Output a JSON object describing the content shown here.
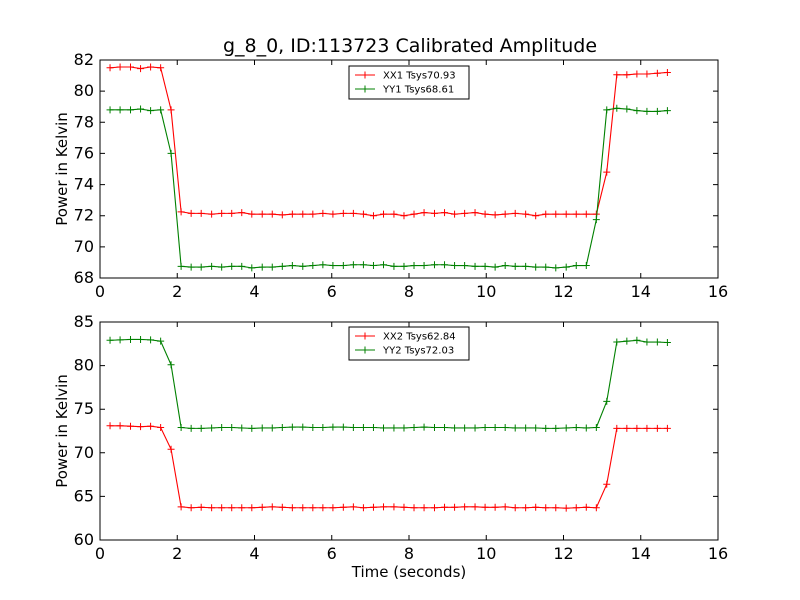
{
  "title": "g_8_0, ID:113723 Calibrated Amplitude",
  "chart_data": [
    {
      "type": "line",
      "title": "g_8_0, ID:113723 Calibrated Amplitude",
      "xlabel": "",
      "ylabel": "Power in Kelvin",
      "xlim": [
        0,
        16
      ],
      "ylim": [
        68,
        82
      ],
      "xticks": [
        0,
        2,
        4,
        6,
        8,
        10,
        12,
        14,
        16
      ],
      "yticks": [
        68,
        70,
        72,
        74,
        76,
        78,
        80,
        82
      ],
      "grid": false,
      "legend_position": "top-center",
      "x": [
        0.26,
        0.52,
        0.79,
        1.05,
        1.31,
        1.57,
        1.84,
        2.1,
        2.36,
        2.62,
        2.89,
        3.15,
        3.41,
        3.67,
        3.93,
        4.2,
        4.46,
        4.72,
        4.98,
        5.25,
        5.51,
        5.77,
        6.03,
        6.3,
        6.56,
        6.82,
        7.08,
        7.34,
        7.61,
        7.87,
        8.13,
        8.39,
        8.66,
        8.92,
        9.18,
        9.44,
        9.71,
        9.97,
        10.23,
        10.49,
        10.75,
        11.02,
        11.28,
        11.54,
        11.8,
        12.07,
        12.33,
        12.59,
        12.85,
        13.12,
        13.38,
        13.64,
        13.9,
        14.16,
        14.43,
        14.69
      ],
      "series": [
        {
          "name": "XX1 Tsys70.93",
          "color": "#ff0000",
          "values": [
            81.5,
            81.55,
            81.55,
            81.45,
            81.55,
            81.5,
            78.8,
            72.25,
            72.15,
            72.15,
            72.1,
            72.15,
            72.15,
            72.2,
            72.1,
            72.1,
            72.1,
            72.05,
            72.1,
            72.1,
            72.1,
            72.15,
            72.1,
            72.15,
            72.15,
            72.1,
            72.0,
            72.1,
            72.1,
            72.0,
            72.1,
            72.2,
            72.15,
            72.2,
            72.1,
            72.15,
            72.2,
            72.1,
            72.05,
            72.1,
            72.15,
            72.1,
            72.0,
            72.1,
            72.1,
            72.1,
            72.1,
            72.1,
            72.1,
            74.8,
            81.05,
            81.05,
            81.1,
            81.1,
            81.15,
            81.2
          ]
        },
        {
          "name": "YY1 Tsys68.61",
          "color": "#008000",
          "values": [
            78.8,
            78.8,
            78.8,
            78.85,
            78.75,
            78.8,
            76.0,
            68.75,
            68.7,
            68.7,
            68.75,
            68.7,
            68.75,
            68.75,
            68.65,
            68.7,
            68.7,
            68.75,
            68.8,
            68.75,
            68.8,
            68.85,
            68.8,
            68.8,
            68.85,
            68.85,
            68.8,
            68.85,
            68.75,
            68.75,
            68.8,
            68.8,
            68.85,
            68.85,
            68.8,
            68.8,
            68.75,
            68.75,
            68.7,
            68.8,
            68.75,
            68.75,
            68.7,
            68.7,
            68.65,
            68.7,
            68.8,
            68.8,
            71.75,
            78.8,
            78.9,
            78.85,
            78.75,
            78.7,
            78.7,
            78.75
          ]
        }
      ]
    },
    {
      "type": "line",
      "title": "",
      "xlabel": "Time (seconds)",
      "ylabel": "Power in Kelvin",
      "xlim": [
        0,
        16
      ],
      "ylim": [
        60,
        85
      ],
      "xticks": [
        0,
        2,
        4,
        6,
        8,
        10,
        12,
        14,
        16
      ],
      "yticks": [
        60,
        65,
        70,
        75,
        80,
        85
      ],
      "grid": false,
      "legend_position": "top-center",
      "x": [
        0.26,
        0.52,
        0.79,
        1.05,
        1.31,
        1.57,
        1.84,
        2.1,
        2.36,
        2.62,
        2.89,
        3.15,
        3.41,
        3.67,
        3.93,
        4.2,
        4.46,
        4.72,
        4.98,
        5.25,
        5.51,
        5.77,
        6.03,
        6.3,
        6.56,
        6.82,
        7.08,
        7.34,
        7.61,
        7.87,
        8.13,
        8.39,
        8.66,
        8.92,
        9.18,
        9.44,
        9.71,
        9.97,
        10.23,
        10.49,
        10.75,
        11.02,
        11.28,
        11.54,
        11.8,
        12.07,
        12.33,
        12.59,
        12.85,
        13.12,
        13.38,
        13.64,
        13.9,
        14.16,
        14.43,
        14.69
      ],
      "series": [
        {
          "name": "XX2 Tsys62.84",
          "color": "#ff0000",
          "values": [
            73.1,
            73.1,
            73.05,
            73.0,
            73.05,
            72.9,
            70.4,
            63.8,
            63.7,
            63.75,
            63.7,
            63.7,
            63.7,
            63.7,
            63.7,
            63.75,
            63.8,
            63.75,
            63.7,
            63.7,
            63.7,
            63.7,
            63.7,
            63.75,
            63.8,
            63.7,
            63.75,
            63.8,
            63.8,
            63.75,
            63.7,
            63.7,
            63.7,
            63.75,
            63.75,
            63.8,
            63.8,
            63.75,
            63.75,
            63.8,
            63.7,
            63.7,
            63.75,
            63.7,
            63.7,
            63.65,
            63.7,
            63.75,
            63.7,
            66.4,
            72.8,
            72.8,
            72.8,
            72.8,
            72.8,
            72.8
          ]
        },
        {
          "name": "YY2 Tsys72.03",
          "color": "#008000",
          "values": [
            82.9,
            82.95,
            83.0,
            83.0,
            82.95,
            82.8,
            80.1,
            72.9,
            72.8,
            72.8,
            72.85,
            72.9,
            72.9,
            72.85,
            72.8,
            72.85,
            72.85,
            72.9,
            72.95,
            72.95,
            72.9,
            72.9,
            72.95,
            72.95,
            72.9,
            72.9,
            72.9,
            72.85,
            72.85,
            72.85,
            72.9,
            72.95,
            72.9,
            72.9,
            72.85,
            72.85,
            72.85,
            72.9,
            72.9,
            72.9,
            72.85,
            72.85,
            72.85,
            72.8,
            72.8,
            72.85,
            72.9,
            72.85,
            72.9,
            75.9,
            82.7,
            82.8,
            82.9,
            82.7,
            82.7,
            82.65
          ]
        }
      ]
    }
  ]
}
